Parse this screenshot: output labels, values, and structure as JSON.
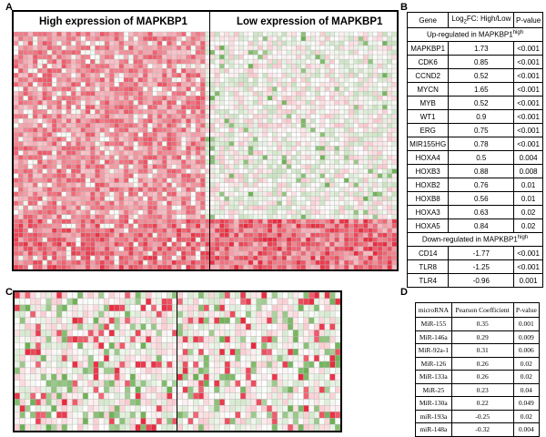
{
  "panels": {
    "A": "A",
    "B": "B",
    "C": "C",
    "D": "D"
  },
  "panel_a": {
    "left_header": "High expression of MAPKBP1",
    "right_header": "Low expression of MAPKBP1"
  },
  "table_b": {
    "headers": {
      "gene": "Gene",
      "fc_main": "Log",
      "fc_sub": "2",
      "fc_rest": "FC: High/Low",
      "pvalue": "P-value"
    },
    "up_label": "Up-regulated in MAPKBP1",
    "up_sup": "high",
    "up_rows": [
      {
        "gene": "MAPKBP1",
        "fc": "1.73",
        "p": "<0.001"
      },
      {
        "gene": "CDK6",
        "fc": "0.85",
        "p": "<0.001"
      },
      {
        "gene": "CCND2",
        "fc": "0.52",
        "p": "<0.001"
      },
      {
        "gene": "MYCN",
        "fc": "1.65",
        "p": "<0.001"
      },
      {
        "gene": "MYB",
        "fc": "0.52",
        "p": "<0.001"
      },
      {
        "gene": "WT1",
        "fc": "0.9",
        "p": "<0.001"
      },
      {
        "gene": "ERG",
        "fc": "0.75",
        "p": "<0.001"
      },
      {
        "gene": "MIR155HG",
        "fc": "0.78",
        "p": "<0.001"
      },
      {
        "gene": "HOXA4",
        "fc": "0.5",
        "p": "0.004"
      },
      {
        "gene": "HOXB3",
        "fc": "0.88",
        "p": "0.008"
      },
      {
        "gene": "HOXB2",
        "fc": "0.76",
        "p": "0.01"
      },
      {
        "gene": "HOXB8",
        "fc": "0.56",
        "p": "0.01"
      },
      {
        "gene": "HOXA3",
        "fc": "0.63",
        "p": "0.02"
      },
      {
        "gene": "HOXA5",
        "fc": "0.84",
        "p": "0.02"
      }
    ],
    "down_label": "Down-regulated in MAPKBP1",
    "down_sup": "high",
    "down_rows": [
      {
        "gene": "CD14",
        "fc": "-1.77",
        "p": "<0.001"
      },
      {
        "gene": "TLR8",
        "fc": "-1.25",
        "p": "<0.001"
      },
      {
        "gene": "TLR4",
        "fc": "-0.96",
        "p": "0.001"
      }
    ]
  },
  "table_d": {
    "headers": {
      "mirna": "microRNA",
      "pearson": "Pearson Coefficient",
      "pvalue": "P-value"
    },
    "rows": [
      {
        "mirna": "MiR-155",
        "r": "0.35",
        "p": "0.001"
      },
      {
        "mirna": "MiR-146a",
        "r": "0.29",
        "p": "0.009"
      },
      {
        "mirna": "MiR-92a-1",
        "r": "0.31",
        "p": "0.006"
      },
      {
        "mirna": "MiR-126",
        "r": "0.26",
        "p": "0.02"
      },
      {
        "mirna": "MiR-133a",
        "r": "0.26",
        "p": "0.02"
      },
      {
        "mirna": "MiR-25",
        "r": "0.23",
        "p": "0.04"
      },
      {
        "mirna": "MiR-130a",
        "r": "0.22",
        "p": "0.049"
      },
      {
        "mirna": "miR-193a",
        "r": "-0.25",
        "p": "0.02"
      },
      {
        "mirna": "miR-148a",
        "r": "-0.32",
        "p": "0.004"
      }
    ]
  },
  "colors": {
    "high": "#e8283c",
    "low": "#5aa63e",
    "neutral": "#ffffff"
  }
}
